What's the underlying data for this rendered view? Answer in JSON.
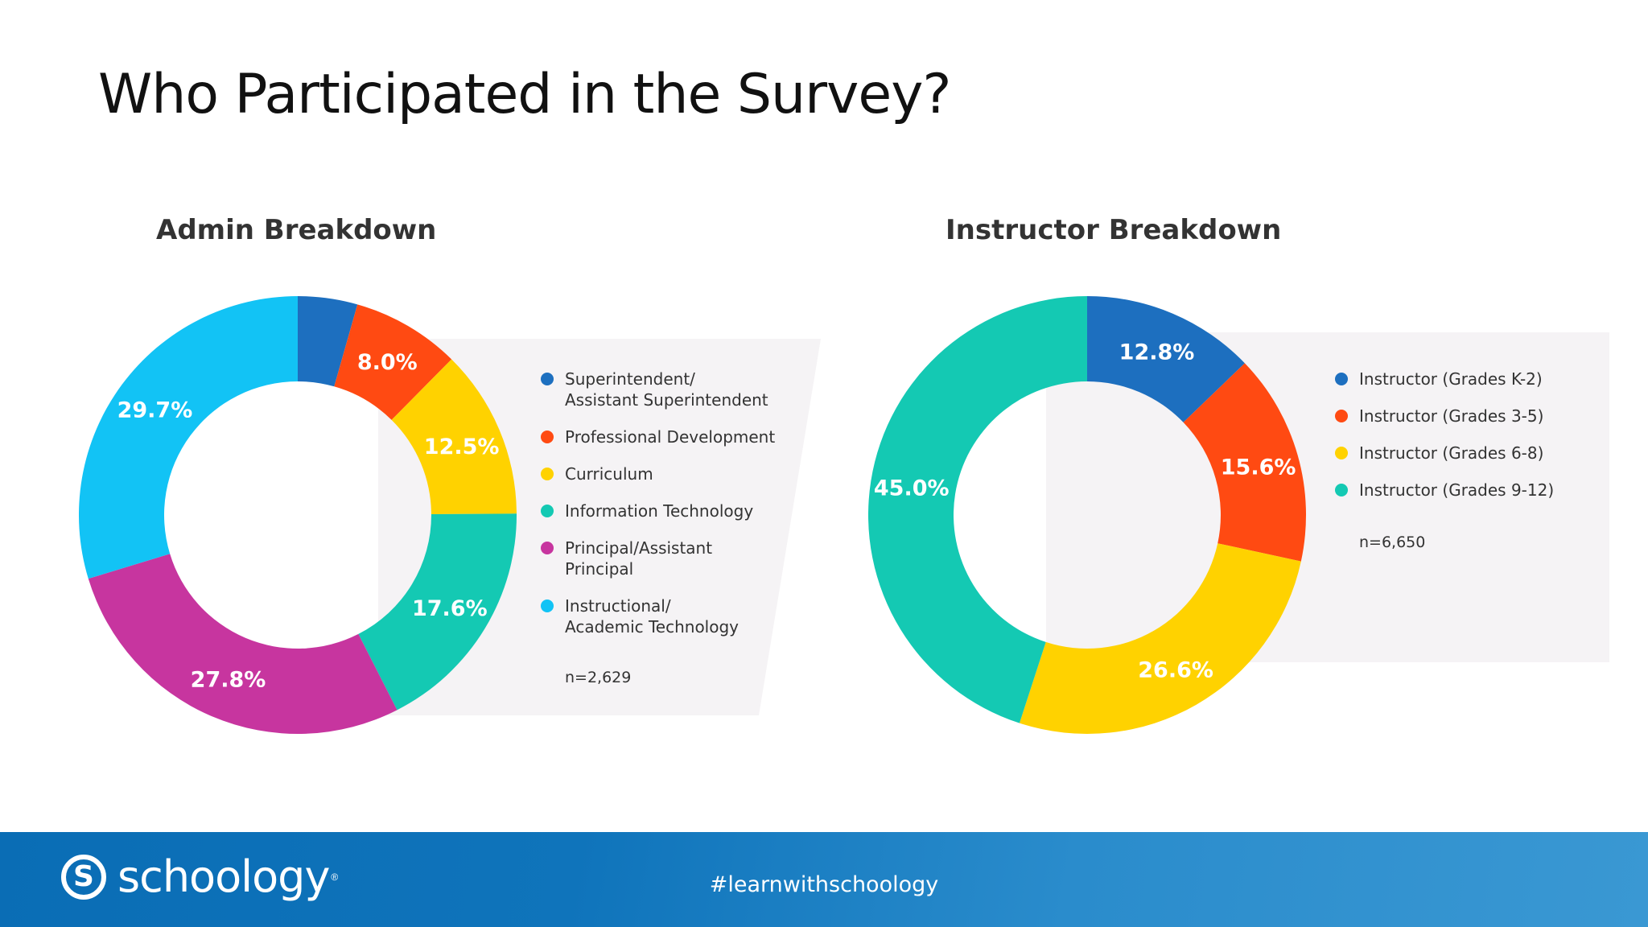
{
  "slide": {
    "title": "Who Participated in the Survey?"
  },
  "chart_data": [
    {
      "type": "pie",
      "title": "Admin Breakdown",
      "categories": [
        "Superintendent/ Assistant Superintendent",
        "Professional Development",
        "Curriculum",
        "Information Technology",
        "Principal/Assistant Principal",
        "Instructional/ Academic Technology"
      ],
      "values": [
        4.4,
        8.0,
        12.5,
        17.6,
        27.8,
        29.7
      ],
      "data_labels": [
        "",
        "8.0%",
        "12.5%",
        "17.6%",
        "27.8%",
        "29.7%"
      ],
      "colors": [
        "#1d6fbf",
        "#ff4a12",
        "#ffd200",
        "#14c9b3",
        "#c7359f",
        "#12c3f5"
      ],
      "legend_placement": "right",
      "note": "n=2,629"
    },
    {
      "type": "pie",
      "title": "Instructor Breakdown",
      "categories": [
        "Instructor (Grades K-2)",
        "Instructor (Grades 3-5)",
        "Instructor (Grades 6-8)",
        "Instructor (Grades 9-12)"
      ],
      "values": [
        12.8,
        15.6,
        26.6,
        45.0
      ],
      "data_labels": [
        "12.8%",
        "15.6%",
        "26.6%",
        "45.0%"
      ],
      "colors": [
        "#1d6fbf",
        "#ff4a12",
        "#ffd200",
        "#14c9b3"
      ],
      "legend_placement": "right",
      "note": "n=6,650"
    }
  ],
  "footer": {
    "logo_text": "schoology",
    "logo_mark": "S",
    "logo_reg": "®",
    "hashtag": "#learnwithschoology"
  }
}
